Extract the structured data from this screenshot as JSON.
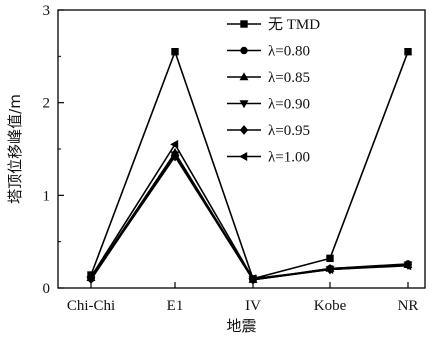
{
  "chart_data": {
    "type": "line",
    "xlabel": "地震",
    "ylabel": "塔顶位移峰值/m",
    "categories": [
      "Chi-Chi",
      "E1",
      "IV",
      "Kobe",
      "NR"
    ],
    "ylim": [
      0,
      3
    ],
    "yticks": [
      0,
      1,
      2,
      3
    ],
    "grid": false,
    "legend_position": "top-right",
    "color": "#000000",
    "series": [
      {
        "name": "无 TMD",
        "marker": "square",
        "values": [
          0.14,
          2.55,
          0.1,
          0.32,
          2.55
        ]
      },
      {
        "name": "λ=0.80",
        "marker": "circle",
        "values": [
          0.1,
          1.43,
          0.09,
          0.21,
          0.26
        ]
      },
      {
        "name": "λ=0.85",
        "marker": "triangle-up",
        "values": [
          0.11,
          1.46,
          0.09,
          0.21,
          0.25
        ]
      },
      {
        "name": "λ=0.90",
        "marker": "triangle-down",
        "values": [
          0.09,
          1.44,
          0.09,
          0.2,
          0.25
        ]
      },
      {
        "name": "λ=0.95",
        "marker": "diamond",
        "values": [
          0.1,
          1.42,
          0.09,
          0.2,
          0.25
        ]
      },
      {
        "name": "λ=1.00",
        "marker": "triangle-left",
        "values": [
          0.12,
          1.55,
          0.1,
          0.2,
          0.24
        ]
      }
    ]
  }
}
